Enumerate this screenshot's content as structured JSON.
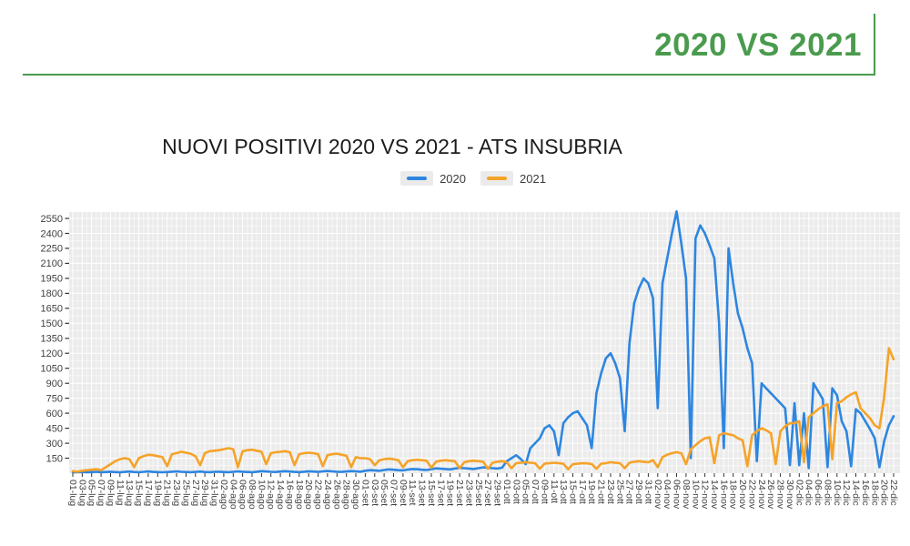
{
  "header": {
    "title": "2020 VS 2021",
    "accent_color": "#4a9b4e"
  },
  "chart": {
    "title": "NUOVI POSITIVI 2020 VS 2021 - ATS INSUBRIA"
  },
  "chart_data": {
    "type": "line",
    "title": "NUOVI POSITIVI 2020 VS 2021 - ATS INSUBRIA",
    "x_frequency": "daily",
    "x_start": "01-lug",
    "x_end": "22-dic",
    "x_tick_labels": [
      "01-lug",
      "03-lug",
      "05-lug",
      "07-lug",
      "09-lug",
      "11-lug",
      "13-lug",
      "15-lug",
      "17-lug",
      "19-lug",
      "21-lug",
      "23-lug",
      "25-lug",
      "27-lug",
      "29-lug",
      "31-lug",
      "02-ago",
      "04-ago",
      "06-ago",
      "08-ago",
      "10-ago",
      "12-ago",
      "14-ago",
      "16-ago",
      "18-ago",
      "20-ago",
      "22-ago",
      "24-ago",
      "26-ago",
      "28-ago",
      "30-ago",
      "01-set",
      "03-set",
      "05-set",
      "07-set",
      "09-set",
      "11-set",
      "13-set",
      "15-set",
      "17-set",
      "19-set",
      "21-set",
      "23-set",
      "25-set",
      "27-set",
      "29-set",
      "01-ott",
      "03-ott",
      "05-ott",
      "07-ott",
      "09-ott",
      "11-ott",
      "13-ott",
      "15-ott",
      "17-ott",
      "19-ott",
      "21-ott",
      "23-ott",
      "25-ott",
      "27-ott",
      "29-ott",
      "31-ott",
      "02-nov",
      "04-nov",
      "06-nov",
      "08-nov",
      "10-nov",
      "12-nov",
      "14-nov",
      "16-nov",
      "18-nov",
      "20-nov",
      "22-nov",
      "24-nov",
      "26-nov",
      "28-nov",
      "30-nov",
      "02-dic",
      "04-dic",
      "06-dic",
      "08-dic",
      "10-dic",
      "12-dic",
      "14-dic",
      "16-dic",
      "18-dic",
      "20-dic",
      "22-dic"
    ],
    "y_ticks": [
      150,
      300,
      450,
      600,
      750,
      900,
      1050,
      1200,
      1350,
      1500,
      1650,
      1800,
      1950,
      2100,
      2250,
      2400,
      2550
    ],
    "ylim": [
      0,
      2614
    ],
    "grid": true,
    "panel_color": "#ebebeb",
    "grid_color": "#ffffff",
    "legend_position": "top-center",
    "series": [
      {
        "name": "2020",
        "color": "#2e86e0",
        "values": [
          8,
          10,
          12,
          9,
          11,
          14,
          10,
          12,
          15,
          11,
          9,
          13,
          16,
          12,
          10,
          14,
          17,
          13,
          11,
          9,
          12,
          15,
          18,
          14,
          12,
          10,
          13,
          16,
          12,
          10,
          14,
          15,
          12,
          10,
          14,
          18,
          15,
          12,
          10,
          15,
          20,
          17,
          14,
          12,
          16,
          20,
          16,
          13,
          11,
          15,
          19,
          16,
          13,
          18,
          22,
          18,
          15,
          13,
          17,
          21,
          18,
          15,
          25,
          30,
          28,
          24,
          32,
          38,
          35,
          30,
          28,
          36,
          42,
          40,
          35,
          32,
          40,
          48,
          45,
          42,
          38,
          46,
          54,
          50,
          46,
          42,
          50,
          58,
          55,
          50,
          46,
          55,
          120,
          150,
          180,
          140,
          90,
          250,
          300,
          350,
          450,
          480,
          420,
          180,
          500,
          560,
          600,
          620,
          550,
          480,
          250,
          800,
          1000,
          1150,
          1200,
          1100,
          950,
          420,
          1300,
          1700,
          1850,
          1950,
          1900,
          1750,
          650,
          1900,
          2150,
          2400,
          2620,
          2300,
          1950,
          150,
          2350,
          2480,
          2400,
          2280,
          2150,
          1500,
          250,
          2250,
          1900,
          1600,
          1450,
          1250,
          1100,
          120,
          900,
          850,
          800,
          750,
          700,
          650,
          80,
          700,
          80,
          600,
          50,
          900,
          820,
          740,
          60,
          850,
          780,
          520,
          420,
          70,
          640,
          600,
          520,
          440,
          350,
          60,
          320,
          480,
          570
        ]
      },
      {
        "name": "2021",
        "color": "#f5a329",
        "values": [
          20,
          15,
          25,
          30,
          35,
          40,
          30,
          60,
          90,
          120,
          140,
          150,
          140,
          60,
          150,
          170,
          185,
          180,
          170,
          160,
          70,
          190,
          200,
          215,
          205,
          195,
          170,
          80,
          200,
          220,
          225,
          230,
          240,
          250,
          240,
          60,
          220,
          230,
          235,
          225,
          215,
          90,
          200,
          210,
          215,
          220,
          210,
          80,
          190,
          200,
          205,
          200,
          190,
          70,
          180,
          190,
          195,
          185,
          175,
          60,
          160,
          150,
          150,
          140,
          80,
          130,
          140,
          145,
          140,
          130,
          60,
          120,
          130,
          135,
          130,
          125,
          55,
          115,
          125,
          130,
          125,
          120,
          50,
          110,
          120,
          125,
          120,
          115,
          45,
          105,
          115,
          120,
          110,
          50,
          100,
          105,
          110,
          105,
          100,
          45,
          95,
          100,
          105,
          100,
          95,
          40,
          90,
          95,
          100,
          98,
          92,
          45,
          95,
          100,
          110,
          105,
          100,
          50,
          105,
          115,
          120,
          115,
          110,
          130,
          60,
          160,
          185,
          200,
          210,
          200,
          90,
          240,
          280,
          320,
          350,
          360,
          100,
          380,
          400,
          390,
          380,
          350,
          330,
          70,
          380,
          420,
          450,
          430,
          400,
          90,
          420,
          470,
          500,
          500,
          520,
          110,
          560,
          600,
          640,
          670,
          690,
          140,
          700,
          720,
          760,
          790,
          810,
          650,
          600,
          550,
          480,
          450,
          760,
          1250,
          1140
        ]
      }
    ]
  }
}
